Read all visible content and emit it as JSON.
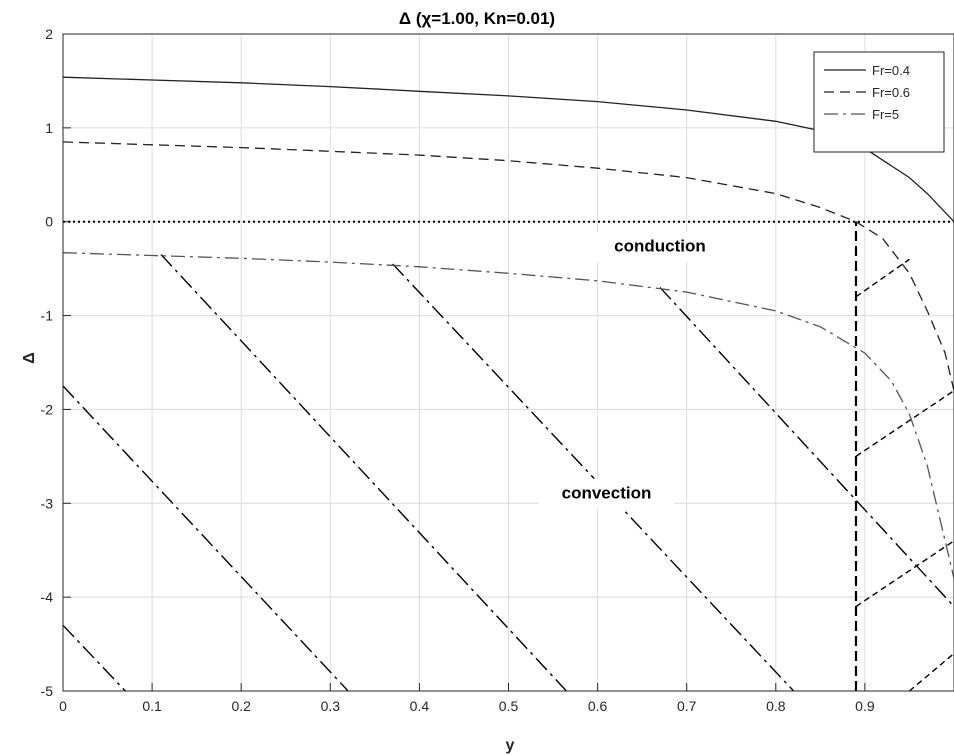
{
  "chart_data": {
    "type": "line",
    "title": "Δ (χ=1.00, Kn=0.01)",
    "xlabel": "y",
    "ylabel": "Δ",
    "xlim": [
      0,
      1
    ],
    "ylim": [
      -5,
      2
    ],
    "grid": true,
    "xticks": [
      "0",
      "0.1",
      "0.2",
      "0.3",
      "0.4",
      "0.5",
      "0.6",
      "0.7",
      "0.8",
      "0.9"
    ],
    "yticks": [
      "2",
      "1",
      "0",
      "-1",
      "-2",
      "-3",
      "-4",
      "-5"
    ],
    "legend_position": "top-right",
    "series": [
      {
        "name": "Fr=0.4",
        "style": "solid",
        "x": [
          0,
          0.1,
          0.2,
          0.3,
          0.4,
          0.5,
          0.6,
          0.7,
          0.8,
          0.85,
          0.9,
          0.95,
          0.97,
          0.99,
          1.0
        ],
        "y": [
          1.54,
          1.51,
          1.48,
          1.44,
          1.39,
          1.34,
          1.28,
          1.19,
          1.07,
          0.97,
          0.78,
          0.47,
          0.3,
          0.1,
          0.0
        ]
      },
      {
        "name": "Fr=0.6",
        "style": "dashed",
        "x": [
          0,
          0.1,
          0.2,
          0.3,
          0.4,
          0.5,
          0.6,
          0.7,
          0.8,
          0.85,
          0.89,
          0.92,
          0.95,
          0.97,
          0.99,
          1.0
        ],
        "y": [
          0.85,
          0.82,
          0.79,
          0.75,
          0.71,
          0.65,
          0.57,
          0.47,
          0.3,
          0.15,
          0.0,
          -0.18,
          -0.55,
          -0.95,
          -1.4,
          -1.8
        ]
      },
      {
        "name": "Fr=5",
        "style": "dashdot",
        "x": [
          0,
          0.1,
          0.2,
          0.3,
          0.4,
          0.5,
          0.6,
          0.7,
          0.8,
          0.85,
          0.9,
          0.93,
          0.95,
          0.97,
          0.98,
          0.99,
          1.0
        ],
        "y": [
          -0.33,
          -0.36,
          -0.39,
          -0.43,
          -0.48,
          -0.55,
          -0.63,
          -0.75,
          -0.95,
          -1.12,
          -1.4,
          -1.7,
          -2.05,
          -2.6,
          -3.0,
          -3.4,
          -3.8
        ]
      }
    ],
    "reference_lines": [
      {
        "orientation": "horizontal",
        "y": 0,
        "style": "dotted"
      },
      {
        "orientation": "vertical",
        "x": 0.89,
        "y_range": [
          -5,
          0
        ],
        "style": "dashed"
      }
    ],
    "hatching": {
      "convection_dashdot": [
        {
          "x": [
            0,
            0.07
          ],
          "y": [
            -4.3,
            -5.0
          ]
        },
        {
          "x": [
            0,
            0.32
          ],
          "y": [
            -1.75,
            -5.0
          ]
        },
        {
          "x": [
            0.11,
            0.565
          ],
          "y": [
            -0.35,
            -5.0
          ]
        },
        {
          "x": [
            0.37,
            0.82
          ],
          "y": [
            -0.45,
            -5.0
          ]
        },
        {
          "x": [
            0.67,
            1.0
          ],
          "y": [
            -0.7,
            -4.1
          ]
        }
      ],
      "region_dashed": [
        {
          "x": [
            0.89,
            0.95
          ],
          "y": [
            -0.8,
            -0.4
          ]
        },
        {
          "x": [
            0.89,
            1.0
          ],
          "y": [
            -2.5,
            -1.8
          ]
        },
        {
          "x": [
            0.89,
            1.0
          ],
          "y": [
            -4.1,
            -3.4
          ]
        },
        {
          "x": [
            0.95,
            1.0
          ],
          "y": [
            -5.0,
            -4.6
          ]
        }
      ]
    },
    "annotations": [
      {
        "text": "conduction",
        "x": 0.67,
        "y": -0.32
      },
      {
        "text": "convection",
        "x": 0.61,
        "y": -2.95
      }
    ]
  }
}
